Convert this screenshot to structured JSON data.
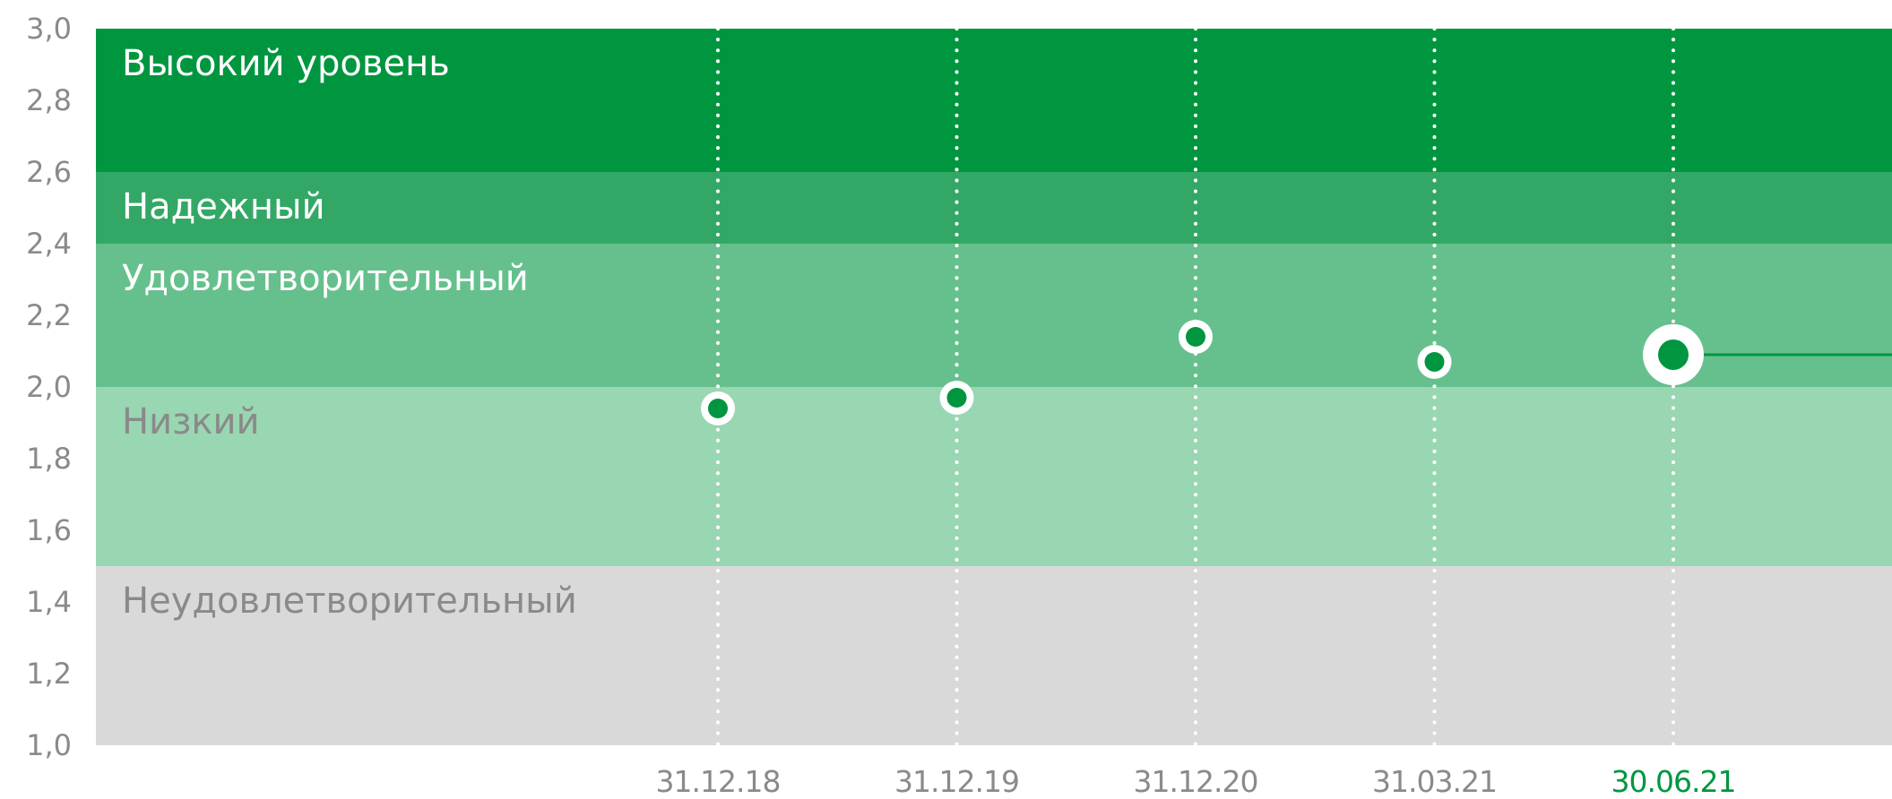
{
  "chart_data": {
    "type": "scatter",
    "x": [
      "31.12.18",
      "31.12.19",
      "31.12.20",
      "31.03.21",
      "30.06.21"
    ],
    "y": [
      1.94,
      1.97,
      2.14,
      2.07,
      2.09
    ],
    "highlight_index": 4,
    "title": "",
    "xlabel": "",
    "ylabel": "",
    "ylim": [
      1.0,
      3.0
    ],
    "yticks": [
      "1,0",
      "1,2",
      "1,4",
      "1,6",
      "1,8",
      "2,0",
      "2,2",
      "2,4",
      "2,6",
      "2,8",
      "3,0"
    ],
    "bands": [
      {
        "label": "Высокий уровень",
        "from": 2.6,
        "to": 3.0,
        "color": "#009640",
        "text_color": "#ffffff"
      },
      {
        "label": "Надежный",
        "from": 2.4,
        "to": 2.6,
        "color": "#33a866",
        "text_color": "#ffffff"
      },
      {
        "label": "Удовлетворительный",
        "from": 2.0,
        "to": 2.4,
        "color": "#66c08d",
        "text_color": "#ffffff"
      },
      {
        "label": "Низкий",
        "from": 1.5,
        "to": 2.0,
        "color": "#99d6b2",
        "text_color": "#8a8a8a"
      },
      {
        "label": "Неудовлетворительный",
        "from": 1.0,
        "to": 1.5,
        "color": "#d9d9d9",
        "text_color": "#8a8a8a"
      }
    ],
    "colors": {
      "point": "#009640",
      "highlight_label": "#009640",
      "label": "#8a8a8a",
      "guide": "#ffffff"
    },
    "grid": false,
    "legend": "none"
  }
}
